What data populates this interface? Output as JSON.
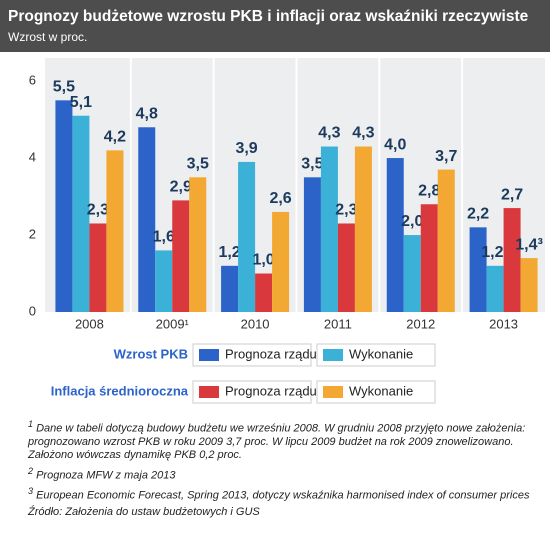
{
  "chart_data": {
    "type": "bar",
    "title": "Prognozy budżetowe wzrostu PKB i inflacji oraz wskaźniki rzeczywiste",
    "subtitle": "Wzrost w proc.",
    "categories": [
      "2008",
      "2009¹",
      "2010",
      "2011",
      "2012",
      "2013"
    ],
    "ylim": [
      0,
      6.6
    ],
    "yticks": [
      0,
      2,
      4,
      6
    ],
    "series": [
      {
        "group": "Wzrost PKB",
        "name": "Prognoza rządu",
        "color": "#2b63c9",
        "values": [
          5.5,
          4.8,
          1.2,
          3.5,
          4.0,
          2.2
        ],
        "value_labels": [
          "5,5",
          "4,8",
          "1,2",
          "3,5",
          "4,0",
          "2,2"
        ]
      },
      {
        "group": "Wzrost PKB",
        "name": "Wykonanie",
        "color": "#3cb1d8",
        "values": [
          5.1,
          1.6,
          3.9,
          4.3,
          2.0,
          1.2
        ],
        "value_labels": [
          "5,1",
          "1,6",
          "3,9",
          "4,3",
          "2,0",
          "1,2²"
        ]
      },
      {
        "group": "Inflacja średnioroczna",
        "name": "Prognoza rządu",
        "color": "#d9393c",
        "values": [
          2.3,
          2.9,
          1.0,
          2.3,
          2.8,
          2.7
        ],
        "value_labels": [
          "2,3",
          "2,9",
          "1,0",
          "2,3",
          "2,8",
          "2,7"
        ]
      },
      {
        "group": "Inflacja średnioroczna",
        "name": "Wykonanie",
        "color": "#f2a832",
        "values": [
          4.2,
          3.5,
          2.6,
          4.3,
          3.7,
          1.4
        ],
        "value_labels": [
          "4,2",
          "3,5",
          "2,6",
          "4,3",
          "3,7",
          "1,4³"
        ]
      }
    ]
  },
  "footnotes": [
    {
      "mark": "1",
      "text": "Dane w tabeli dotyczą budowy budżetu we wrześniu 2008. W grudniu 2008 przyjęto nowe założenia: prognozowano wzrost PKB w roku 2009 3,7 proc. W lipcu 2009 budżet na rok 2009 znowelizowano. Założono wówczas dynamikę PKB 0,2 proc."
    },
    {
      "mark": "2",
      "text": "Prognoza MFW z maja 2013"
    },
    {
      "mark": "3",
      "text": "European Economic Forecast, Spring 2013, dotyczy wskaźnika harmonised index of consumer prices"
    }
  ],
  "source": "Źródło: Założenia do ustaw budżetowych i GUS"
}
